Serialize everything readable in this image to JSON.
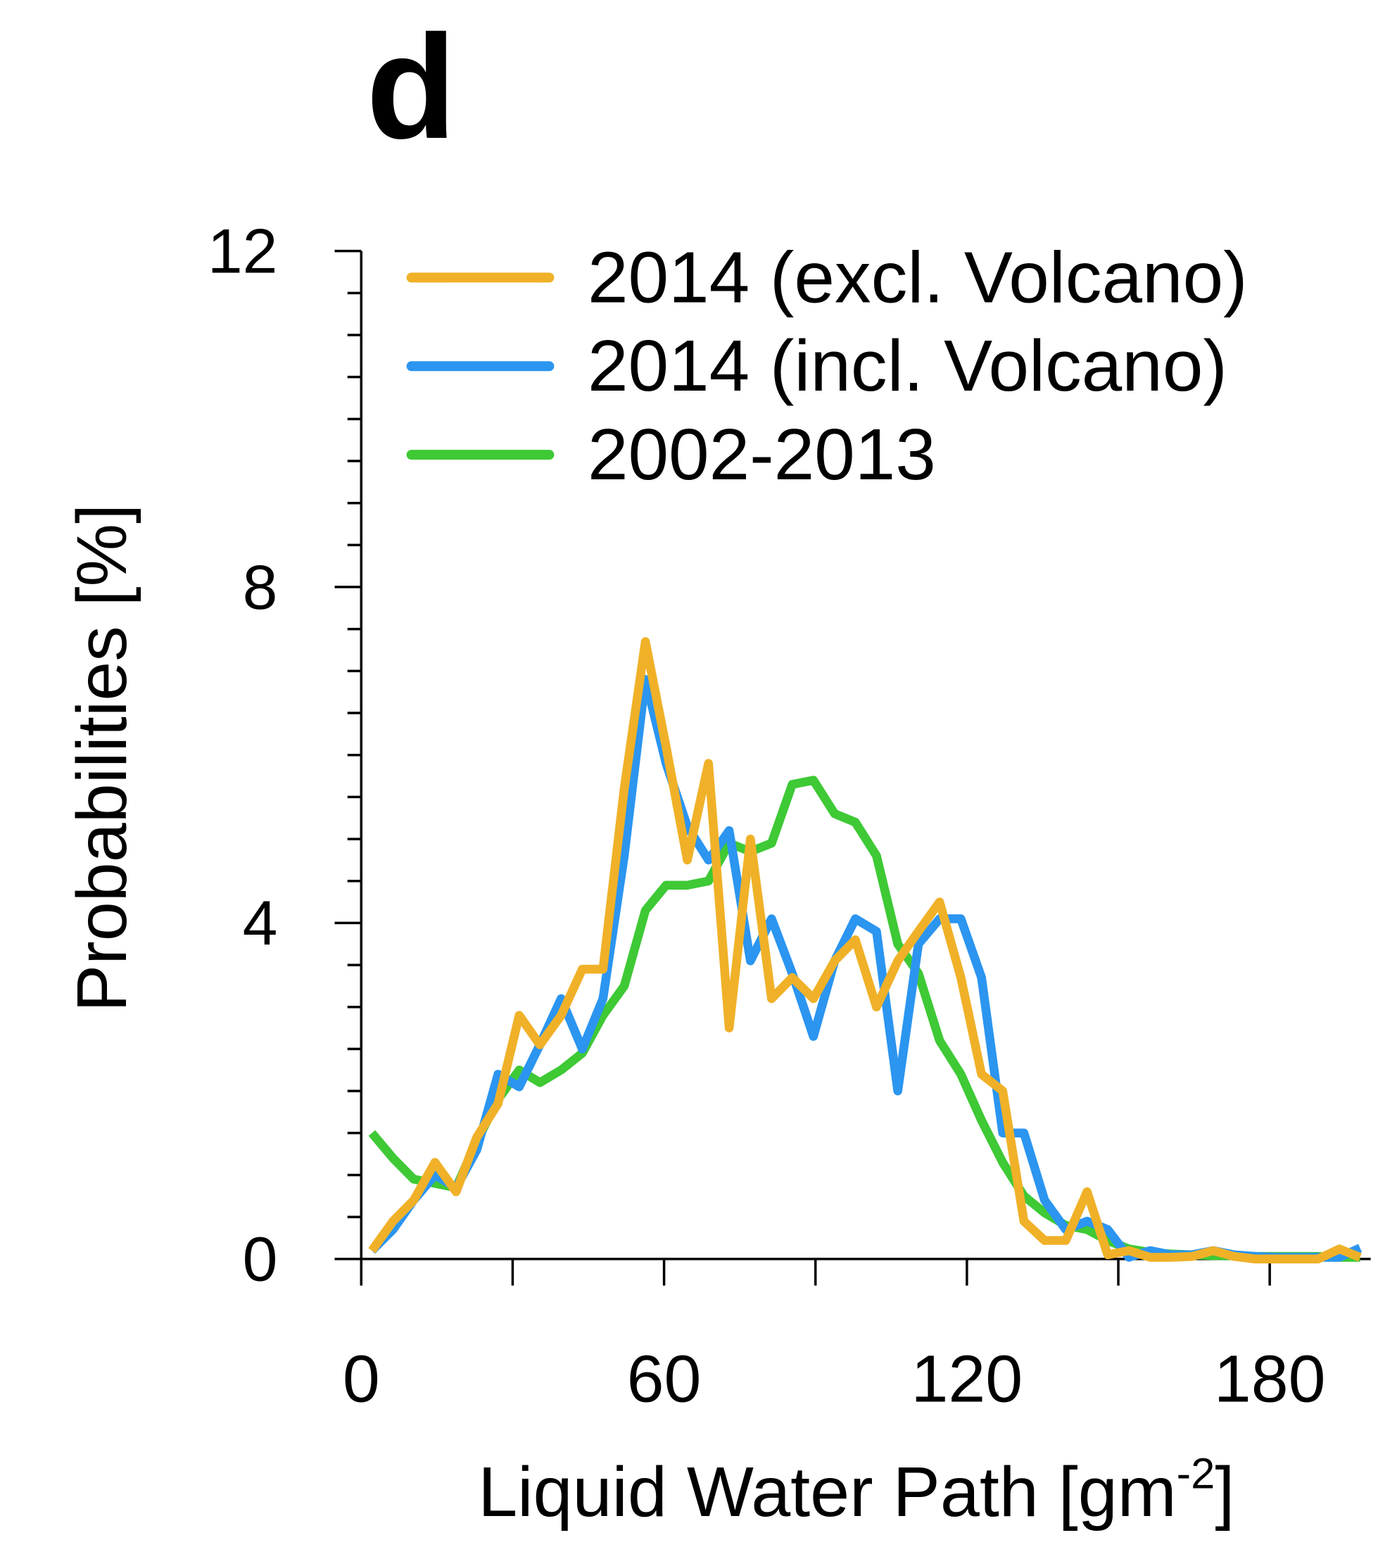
{
  "chart_data": {
    "type": "line",
    "title": "d",
    "xlabel": "Liquid Water Path [gm",
    "xlabel_sup": "-2",
    "xlabel_end": "]",
    "ylabel": "Probabilities [%]",
    "xlim": [
      0,
      200
    ],
    "ylim": [
      0,
      12
    ],
    "xticks": [
      0,
      60,
      120,
      180
    ],
    "xticks_minor": [
      30,
      90,
      150
    ],
    "yticks": [
      0,
      4,
      8,
      12
    ],
    "yticks_minor": [
      0.5,
      1,
      1.5,
      2,
      2.5,
      3,
      3.5,
      4.5,
      5,
      5.5,
      6,
      6.5,
      7,
      7.5,
      8.5,
      9,
      9.5,
      10,
      10.5,
      11,
      11.5
    ],
    "legend": "upper right",
    "x": [
      2.1,
      6.3,
      10.4,
      14.6,
      18.8,
      22.9,
      27.1,
      31.3,
      35.4,
      39.6,
      43.8,
      47.9,
      52.1,
      56.3,
      60.4,
      64.6,
      68.8,
      72.9,
      77.1,
      81.3,
      85.4,
      89.6,
      93.8,
      97.9,
      102.1,
      106.3,
      110.4,
      114.6,
      118.8,
      122.9,
      127.1,
      131.3,
      135.4,
      139.6,
      143.8,
      147.9,
      152.1,
      156.3,
      160.4,
      164.6,
      168.8,
      172.9,
      177.1,
      181.3,
      185.4,
      189.6,
      193.8,
      197.9
    ],
    "series": [
      {
        "name": "2014 (excl. Volcano)",
        "color": "#f0b128",
        "values": [
          0.1,
          0.45,
          0.7,
          1.15,
          0.8,
          1.45,
          1.85,
          2.9,
          2.55,
          2.9,
          3.45,
          3.45,
          5.6,
          7.35,
          6.1,
          4.75,
          5.9,
          2.75,
          5.0,
          3.1,
          3.35,
          3.1,
          3.55,
          3.8,
          3.0,
          3.55,
          3.9,
          4.25,
          3.35,
          2.2,
          2.0,
          0.45,
          0.22,
          0.22,
          0.8,
          0.05,
          0.1,
          0.02,
          0.02,
          0.03,
          0.1,
          0.03,
          0,
          0,
          0,
          0,
          0.12,
          0.02
        ]
      },
      {
        "name": "2014 (incl. Volcano)",
        "color": "#2b95f0",
        "values": [
          0.1,
          0.35,
          0.7,
          1.0,
          0.85,
          1.3,
          2.2,
          2.05,
          2.55,
          3.1,
          2.5,
          3.1,
          4.8,
          6.9,
          5.9,
          5.15,
          4.75,
          5.1,
          3.55,
          4.05,
          3.4,
          2.65,
          3.55,
          4.05,
          3.9,
          2.0,
          3.75,
          4.05,
          4.05,
          3.35,
          1.5,
          1.5,
          0.7,
          0.35,
          0.45,
          0.35,
          0.02,
          0.1,
          0.05,
          0.05,
          0.1,
          0.05,
          0.03,
          0.02,
          0.02,
          0.02,
          0.02,
          0.13
        ]
      },
      {
        "name": "2002-2013",
        "color": "#3ec935",
        "values": [
          1.5,
          1.2,
          0.95,
          0.9,
          0.85,
          1.4,
          1.9,
          2.25,
          2.1,
          2.25,
          2.45,
          2.9,
          3.25,
          4.15,
          4.45,
          4.45,
          4.5,
          4.95,
          4.85,
          4.95,
          5.65,
          5.7,
          5.3,
          5.2,
          4.8,
          3.75,
          3.4,
          2.6,
          2.2,
          1.65,
          1.15,
          0.75,
          0.55,
          0.4,
          0.35,
          0.22,
          0.12,
          0.08,
          0.06,
          0.05,
          0.04,
          0.04,
          0.03,
          0.03,
          0.03,
          0.03,
          0.02,
          0.02
        ]
      }
    ]
  }
}
